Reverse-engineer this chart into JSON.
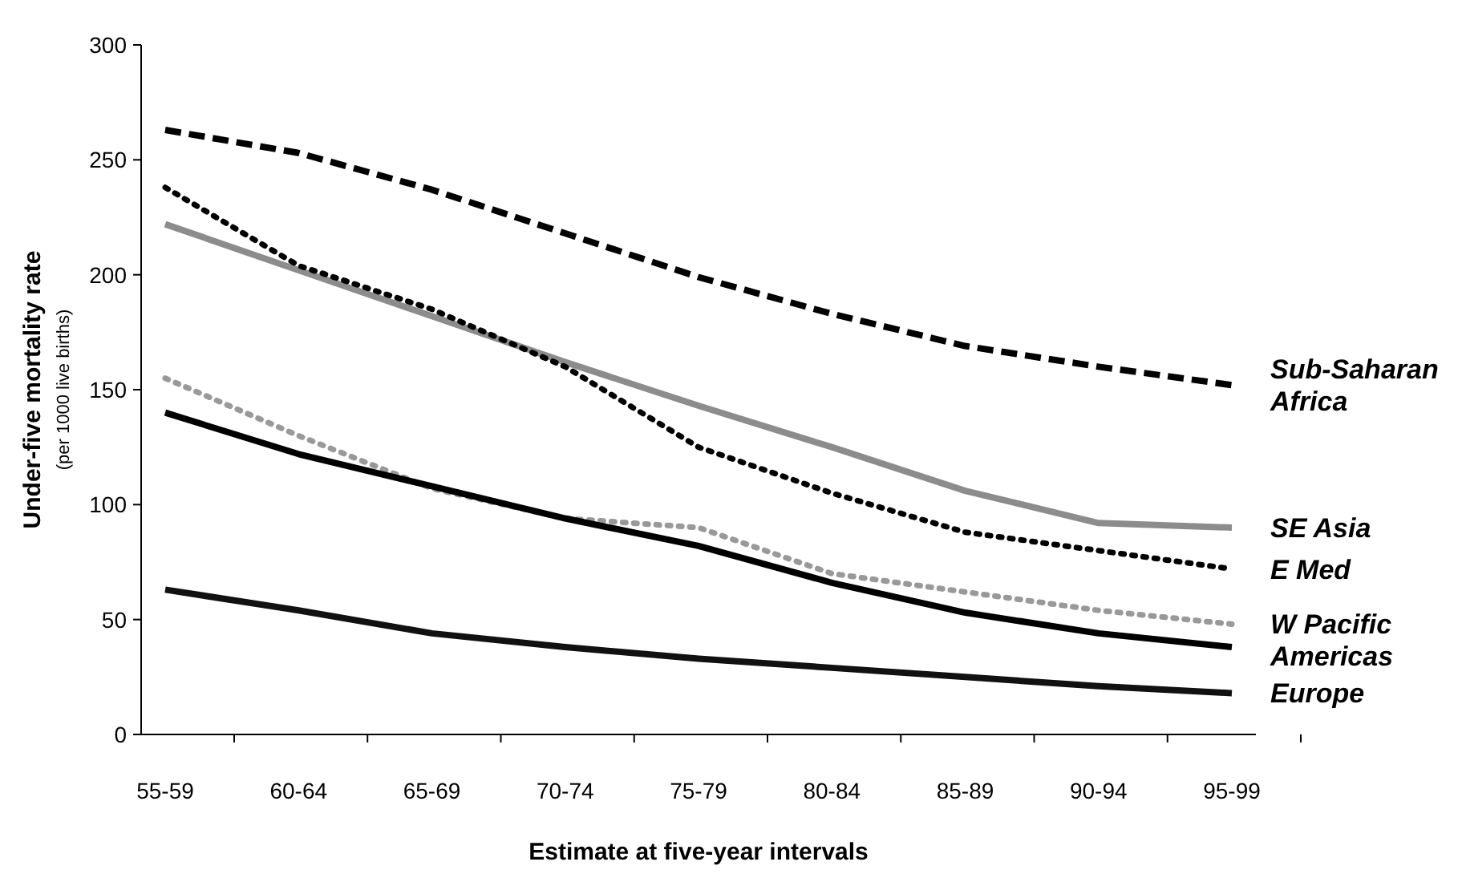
{
  "chart_data": {
    "type": "line",
    "xlabel": "Estimate at five-year intervals",
    "ylabel": "Under-five mortality rate\n(per 1000 live births)",
    "categories": [
      "55-59",
      "60-64",
      "65-69",
      "70-74",
      "75-79",
      "80-84",
      "85-89",
      "90-94",
      "95-99"
    ],
    "ylim": [
      0,
      300
    ],
    "yticks": [
      0,
      50,
      100,
      150,
      200,
      250,
      300
    ],
    "grid": false,
    "legend": false,
    "marker": "none",
    "series": [
      {
        "name": "Sub-Saharan Africa",
        "color": "#000000",
        "line_style": "dashed",
        "values": [
          263,
          253,
          237,
          218,
          199,
          183,
          169,
          160,
          152
        ]
      },
      {
        "name": "SE Asia",
        "color": "#8c8c8c",
        "line_style": "solid",
        "values": [
          222,
          202,
          182,
          162,
          143,
          125,
          106,
          92,
          90
        ]
      },
      {
        "name": "E Med",
        "color": "#000000",
        "line_style": "dotted",
        "values": [
          238,
          204,
          185,
          160,
          125,
          105,
          88,
          80,
          72
        ]
      },
      {
        "name": "W Pacific",
        "color": "#999999",
        "line_style": "dotted",
        "values": [
          155,
          130,
          107,
          94,
          90,
          70,
          62,
          54,
          48
        ]
      },
      {
        "name": "Americas",
        "color": "#000000",
        "line_style": "solid",
        "values": [
          140,
          122,
          108,
          94,
          82,
          66,
          53,
          44,
          38
        ]
      },
      {
        "name": "Europe",
        "color": "#111111",
        "line_style": "solid",
        "values": [
          63,
          54,
          44,
          38,
          33,
          29,
          25,
          21,
          18
        ]
      }
    ]
  }
}
